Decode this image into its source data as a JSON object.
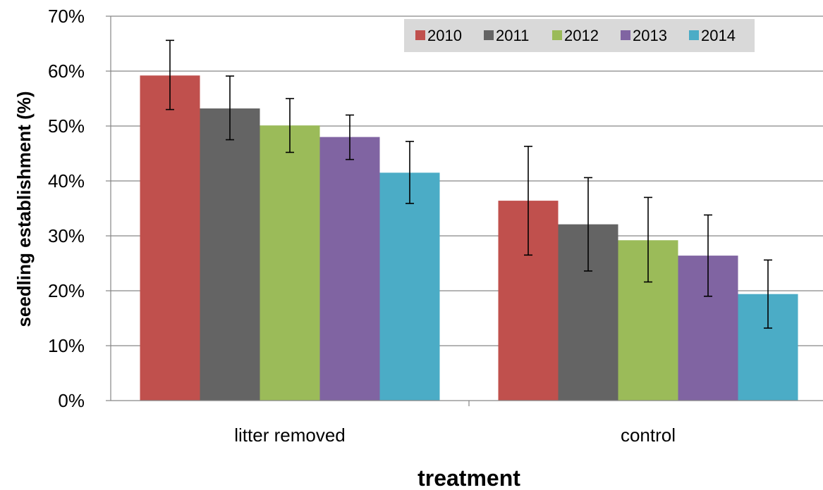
{
  "chart_data": {
    "type": "bar",
    "title": "",
    "xlabel": "treatment",
    "ylabel": "seedling establishment (%)",
    "ylim": [
      0,
      70
    ],
    "ytick_step": 10,
    "ytick_suffix": "%",
    "grid": true,
    "legend_position": "top-right",
    "categories": [
      "litter removed",
      "control"
    ],
    "series": [
      {
        "name": "2010",
        "color": "#c0504d",
        "values": [
          59.2,
          36.4
        ],
        "error_low": [
          53.0,
          26.5
        ],
        "error_high": [
          65.6,
          46.3
        ]
      },
      {
        "name": "2011",
        "color": "#646464",
        "values": [
          53.2,
          32.1
        ],
        "error_low": [
          47.5,
          23.6
        ],
        "error_high": [
          59.1,
          40.6
        ]
      },
      {
        "name": "2012",
        "color": "#9bbb59",
        "values": [
          50.1,
          29.2
        ],
        "error_low": [
          45.2,
          21.6
        ],
        "error_high": [
          55.0,
          37.0
        ]
      },
      {
        "name": "2013",
        "color": "#8064a2",
        "values": [
          48.0,
          26.4
        ],
        "error_low": [
          43.9,
          19.0
        ],
        "error_high": [
          52.0,
          33.8
        ]
      },
      {
        "name": "2014",
        "color": "#4bacc6",
        "values": [
          41.5,
          19.4
        ],
        "error_low": [
          35.9,
          13.2
        ],
        "error_high": [
          47.2,
          25.6
        ]
      }
    ]
  }
}
